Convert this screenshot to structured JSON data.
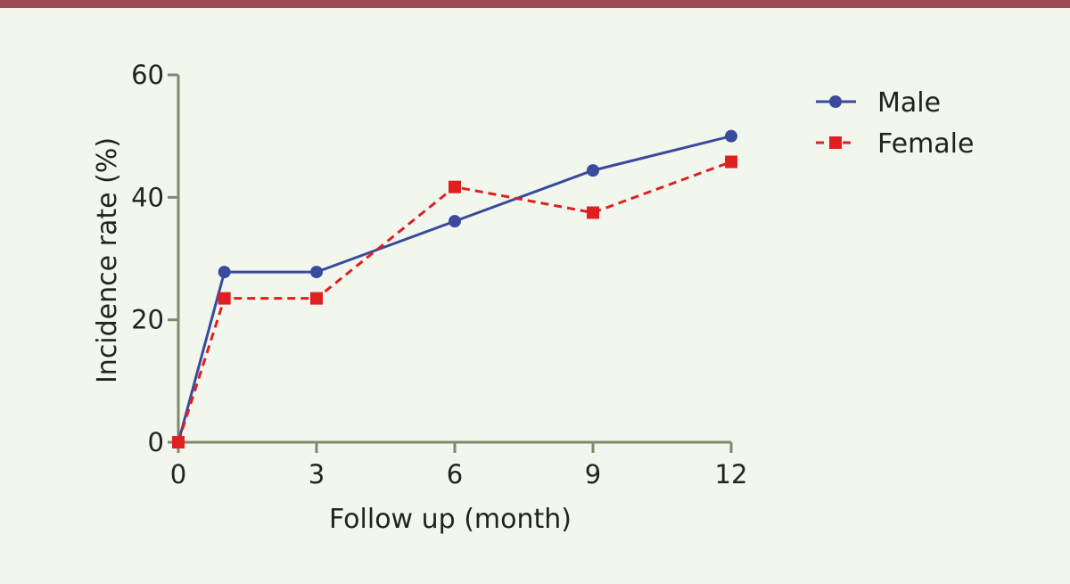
{
  "colors": {
    "top_bar": "#a04a55",
    "background": "#f2f7ee",
    "axis": "#7f8a6b",
    "male": "#3a4a9c",
    "female": "#e02020"
  },
  "chart_data": {
    "type": "line",
    "title": "",
    "xlabel": "Follow up (month)",
    "ylabel": "Incidence rate (%)",
    "xlim": [
      0,
      12
    ],
    "ylim": [
      0,
      60
    ],
    "x_ticks": [
      0,
      3,
      6,
      9,
      12
    ],
    "y_ticks": [
      0,
      20,
      40,
      60
    ],
    "grid": false,
    "legend_position": "top-right",
    "series": [
      {
        "name": "Male",
        "style": "solid",
        "marker": "circle",
        "color": "#3a4a9c",
        "points": [
          [
            0,
            0
          ],
          [
            1,
            27.8
          ],
          [
            3,
            27.8
          ],
          [
            6,
            36.1
          ],
          [
            9,
            44.4
          ],
          [
            12,
            50.0
          ]
        ]
      },
      {
        "name": "Female",
        "style": "dashed",
        "marker": "square",
        "color": "#e02020",
        "points": [
          [
            0,
            0
          ],
          [
            1,
            23.5
          ],
          [
            3,
            23.5
          ],
          [
            6,
            41.7
          ],
          [
            9,
            37.5
          ],
          [
            12,
            45.8
          ]
        ]
      }
    ]
  }
}
